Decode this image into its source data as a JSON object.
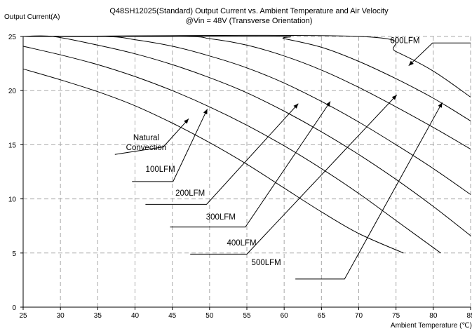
{
  "chart_data": {
    "type": "line",
    "title": "Q48SH12025(Standard)  Output Current vs. Ambient Temperature and Air Velocity",
    "subtitle": "@Vin = 48V (Transverse Orientation)",
    "ylabel": "Output Current(A)",
    "xlabel": "Ambient Temperature (℃)",
    "xlim": [
      25,
      85
    ],
    "ylim": [
      0,
      25
    ],
    "xticks": [
      25,
      30,
      35,
      40,
      45,
      50,
      55,
      60,
      65,
      70,
      75,
      80,
      85
    ],
    "yticks": [
      0,
      5,
      10,
      15,
      20,
      25
    ],
    "grid": "dashed",
    "series": [
      {
        "name": "Natural Convection",
        "x": [
          25,
          30,
          35,
          40,
          45,
          50,
          55,
          60,
          65,
          70,
          76
        ],
        "y": [
          22.0,
          21.0,
          19.9,
          18.6,
          17.0,
          15.2,
          13.2,
          11.0,
          8.8,
          6.8,
          5.0
        ]
      },
      {
        "name": "100LFM",
        "x": [
          25,
          30,
          35,
          40,
          45,
          50,
          55,
          60,
          65,
          70,
          75,
          81
        ],
        "y": [
          24.1,
          23.3,
          22.4,
          21.3,
          20.0,
          18.5,
          16.8,
          14.9,
          12.8,
          10.5,
          8.0,
          5.0
        ]
      },
      {
        "name": "200LFM",
        "x": [
          25,
          29,
          35,
          40,
          45,
          50,
          55,
          60,
          65,
          70,
          75,
          80,
          85
        ],
        "y": [
          25.0,
          25.0,
          24.2,
          23.4,
          22.4,
          21.2,
          19.8,
          18.1,
          16.2,
          14.1,
          11.8,
          9.3,
          6.6
        ]
      },
      {
        "name": "300LFM",
        "x": [
          25,
          36,
          40,
          45,
          50,
          55,
          60,
          65,
          70,
          75,
          80,
          85
        ],
        "y": [
          25.0,
          25.0,
          24.7,
          24.1,
          23.2,
          22.1,
          20.7,
          19.0,
          17.1,
          15.0,
          12.8,
          10.4
        ]
      },
      {
        "name": "400LFM",
        "x": [
          25,
          46,
          50,
          55,
          60,
          65,
          70,
          75,
          80,
          85
        ],
        "y": [
          25.0,
          25.0,
          24.8,
          24.2,
          23.2,
          21.9,
          20.3,
          18.5,
          16.6,
          14.6
        ]
      },
      {
        "name": "500LFM",
        "x": [
          25,
          58,
          60,
          65,
          70,
          75,
          80,
          85
        ],
        "y": [
          25.0,
          25.0,
          24.8,
          24.0,
          22.7,
          21.1,
          19.3,
          17.2
        ]
      },
      {
        "name": "600LFM",
        "x": [
          25,
          70,
          75,
          80,
          85
        ],
        "y": [
          25.0,
          25.0,
          23.6,
          21.8,
          19.4
        ]
      }
    ],
    "annotations": [
      {
        "text": "600LFM",
        "lines": [
          "600LFM"
        ],
        "point": [
          76.7,
          22.3
        ],
        "elbow": [
          79.9,
          24.4
        ],
        "shelf_end": [
          85,
          24.4
        ],
        "label_at": [
          76.2,
          24.4
        ]
      },
      {
        "text": "Natural Convection",
        "lines": [
          "Natural",
          "Convection"
        ],
        "point": [
          47.2,
          17.4
        ],
        "elbow": [
          43.8,
          14.8
        ],
        "shelf_end": [
          37.3,
          14.1
        ],
        "label_at": [
          41.5,
          15.4
        ]
      },
      {
        "text": "100LFM",
        "lines": [
          "100LFM"
        ],
        "point": [
          49.7,
          18.3
        ],
        "elbow": [
          45.1,
          11.6
        ],
        "shelf_end": [
          39.6,
          11.6
        ],
        "label_at": [
          43.4,
          12.5
        ]
      },
      {
        "text": "200LFM",
        "lines": [
          "200LFM"
        ],
        "point": [
          61.9,
          18.8
        ],
        "elbow": [
          49.6,
          9.5
        ],
        "shelf_end": [
          41.4,
          9.5
        ],
        "label_at": [
          47.4,
          10.3
        ]
      },
      {
        "text": "300LFM",
        "lines": [
          "300LFM"
        ],
        "point": [
          66.2,
          19.0
        ],
        "elbow": [
          54.8,
          7.4
        ],
        "shelf_end": [
          44.7,
          7.4
        ],
        "label_at": [
          51.5,
          8.1
        ]
      },
      {
        "text": "400LFM",
        "lines": [
          "400LFM"
        ],
        "point": [
          75.1,
          19.6
        ],
        "elbow": [
          55.0,
          4.9
        ],
        "shelf_end": [
          47.4,
          4.9
        ],
        "label_at": [
          54.3,
          5.7
        ]
      },
      {
        "text": "500LFM",
        "lines": [
          "500LFM"
        ],
        "point": [
          81.2,
          18.9
        ],
        "elbow": [
          68.1,
          2.6
        ],
        "shelf_end": [
          61.5,
          2.6
        ],
        "label_at": [
          57.6,
          3.9
        ]
      }
    ]
  }
}
